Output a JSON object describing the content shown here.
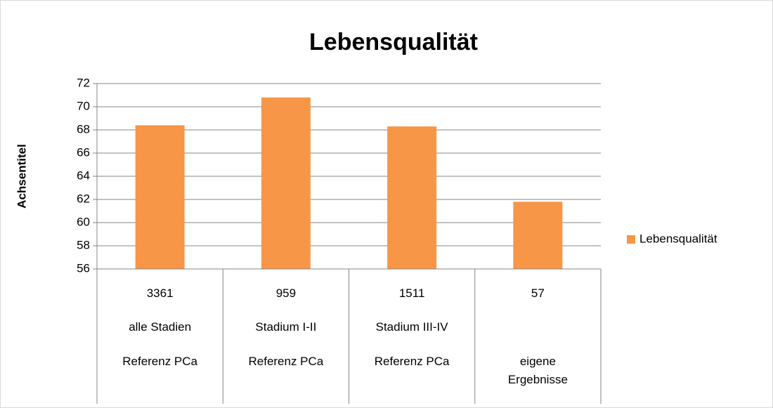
{
  "chart_data": {
    "type": "bar",
    "title": "Lebensqualität",
    "y_label": "Achsentitel",
    "categories": [
      [
        "3361",
        "alle Stadien",
        "Referenz PCa"
      ],
      [
        "959",
        "Stadium I-II",
        "Referenz PCa"
      ],
      [
        "1511",
        "Stadium III-IV",
        "Referenz PCa"
      ],
      [
        "57",
        null,
        "eigene Ergebnisse"
      ]
    ],
    "series": [
      {
        "name": "Lebensqualität",
        "color": "#f79646",
        "values": [
          68.4,
          70.8,
          68.3,
          61.8
        ]
      }
    ],
    "ylim": [
      56,
      72
    ],
    "yticks": [
      56,
      58,
      60,
      62,
      64,
      66,
      68,
      70,
      72
    ],
    "grid": true,
    "legend": "right"
  }
}
